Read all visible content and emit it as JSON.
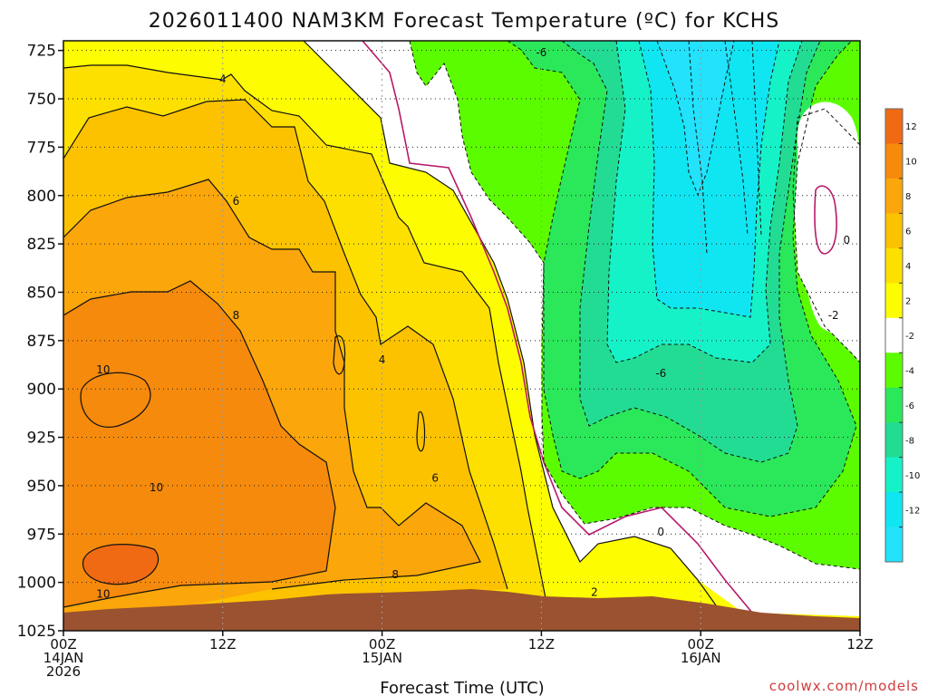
{
  "chart_data": {
    "type": "contour",
    "title": "2026011400 NAM3KM Forecast Temperature (ºC) for KCHS",
    "xlabel": "Forecast Time (UTC)",
    "ylabel": "",
    "credit": "coolwx.com/models",
    "x_unit": "forecast hour",
    "x_range": [
      0,
      60
    ],
    "y_unit": "hPa",
    "y_range": [
      720,
      1025
    ],
    "y_ticks": [
      725,
      750,
      775,
      800,
      825,
      850,
      875,
      900,
      925,
      950,
      975,
      1000,
      1025
    ],
    "x_ticks": [
      {
        "hour": 0,
        "lines": [
          "00Z",
          "14JAN",
          "2026"
        ]
      },
      {
        "hour": 12,
        "lines": [
          "12Z"
        ]
      },
      {
        "hour": 24,
        "lines": [
          "00Z",
          "15JAN"
        ]
      },
      {
        "hour": 36,
        "lines": [
          "12Z"
        ]
      },
      {
        "hour": 48,
        "lines": [
          "00Z",
          "16JAN"
        ]
      },
      {
        "hour": 60,
        "lines": [
          "12Z"
        ]
      }
    ],
    "colorbar": {
      "labels": [
        "12",
        "10",
        "8",
        "6",
        "4",
        "2",
        "-2",
        "-4",
        "-6",
        "-8",
        "-10",
        "-12"
      ],
      "colors": [
        "#f06a14",
        "#f58a0c",
        "#fba60a",
        "#fcc200",
        "#fde000",
        "#fdfc00",
        "#ffffff",
        "#5cfc00",
        "#2ae85a",
        "#23dc94",
        "#16f2c8",
        "#10e6f2",
        "#22e2fc"
      ]
    },
    "contour_labels": [
      {
        "text": "4",
        "hour": 12,
        "p": 740
      },
      {
        "text": "6",
        "hour": 13,
        "p": 803
      },
      {
        "text": "8",
        "hour": 13,
        "p": 862
      },
      {
        "text": "10",
        "hour": 3,
        "p": 890
      },
      {
        "text": "10",
        "hour": 7,
        "p": 951
      },
      {
        "text": "10",
        "hour": 3,
        "p": 1006
      },
      {
        "text": "4",
        "hour": 24,
        "p": 885
      },
      {
        "text": "6",
        "hour": 28,
        "p": 946
      },
      {
        "text": "8",
        "hour": 25,
        "p": 996
      },
      {
        "text": "-6",
        "hour": 36,
        "p": 726
      },
      {
        "text": "0",
        "hour": 59,
        "p": 823
      },
      {
        "text": "-2",
        "hour": 58,
        "p": 862
      },
      {
        "text": "-6",
        "hour": 45,
        "p": 892
      },
      {
        "text": "0",
        "hour": 45,
        "p": 974
      },
      {
        "text": "2",
        "hour": 40,
        "p": 1005
      }
    ]
  }
}
